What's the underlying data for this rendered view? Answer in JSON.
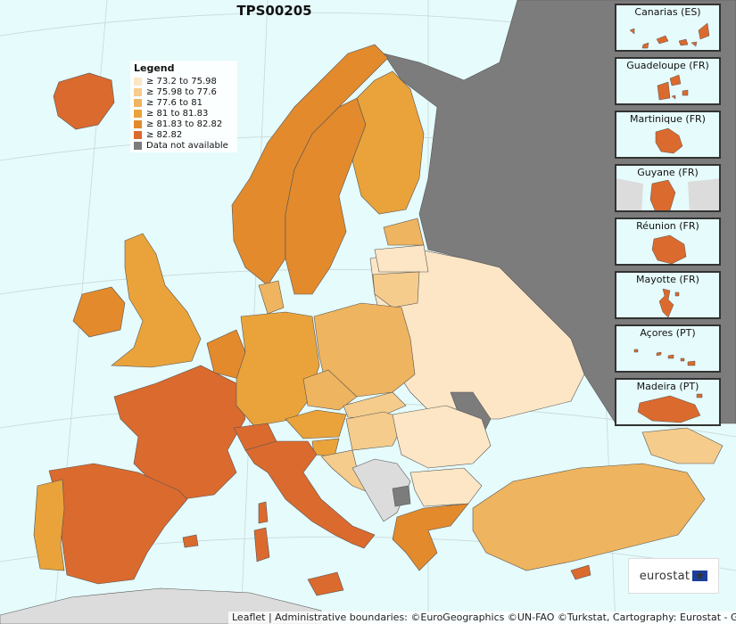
{
  "title": "TPS00205",
  "legend": {
    "title": "Legend",
    "items": [
      {
        "label": "≥ 73.2 to 75.98",
        "color": "#fce6c5"
      },
      {
        "label": "≥ 75.98 to 77.6",
        "color": "#f5cc8c"
      },
      {
        "label": "≥ 77.6 to 81",
        "color": "#efb45f"
      },
      {
        "label": "≥ 81 to 81.83",
        "color": "#eaa33a"
      },
      {
        "label": "≥ 81.83 to 82.82",
        "color": "#e38a2d"
      },
      {
        "label": "≥ 82.82",
        "color": "#db6a2e"
      },
      {
        "label": "Data not available",
        "color": "#7c7c7c"
      }
    ]
  },
  "insets": [
    {
      "label": "Canarias (ES)"
    },
    {
      "label": "Guadeloupe (FR)"
    },
    {
      "label": "Martinique (FR)"
    },
    {
      "label": "Guyane (FR)"
    },
    {
      "label": "Réunion (FR)"
    },
    {
      "label": "Mayotte (FR)"
    },
    {
      "label": "Açores (PT)"
    },
    {
      "label": "Madeira (PT)"
    }
  ],
  "logo": {
    "text": "eurostat",
    "flag": "★"
  },
  "attribution": "Leaflet | Administrative boundaries: ©EuroGeographics ©UN-FAO ©Turkstat, Cartography: Eurostat - GISCO",
  "colors": {
    "sea": "#e6fbfb",
    "non_eu_land": "#dcdcdc",
    "no_data": "#7c7c7c",
    "border": "#555555"
  }
}
